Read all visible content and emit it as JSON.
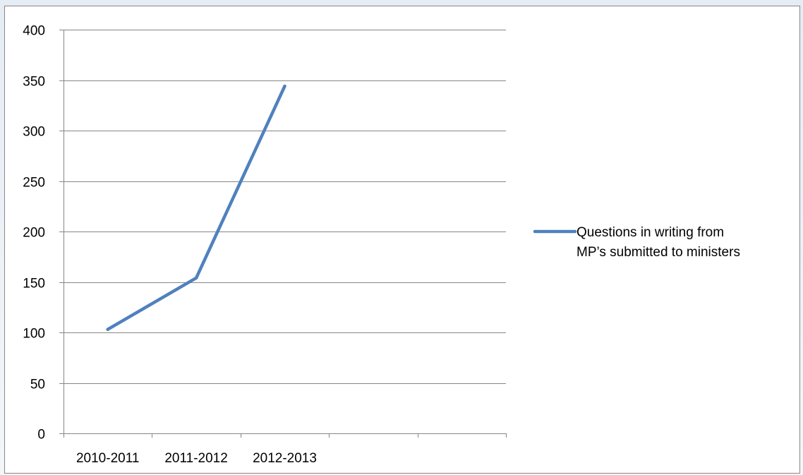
{
  "chart_data": {
    "type": "line",
    "categories": [
      "2010-2011",
      "2011-2012",
      "2012-2013",
      "",
      ""
    ],
    "series": [
      {
        "name": "Questions in writing from MP’s submitted to ministers",
        "legend_lines": [
          "Questions in writing from",
          "MP’s submitted to ministers"
        ],
        "values": [
          103,
          154,
          344,
          null,
          null
        ],
        "color": "#4f81bd"
      }
    ],
    "y_ticks": [
      0,
      50,
      100,
      150,
      200,
      250,
      300,
      350,
      400
    ],
    "ylim": [
      0,
      400
    ],
    "grid": true,
    "legend_position": "right",
    "gridline_color": "#868686",
    "title": "",
    "xlabel": "",
    "ylabel": ""
  }
}
